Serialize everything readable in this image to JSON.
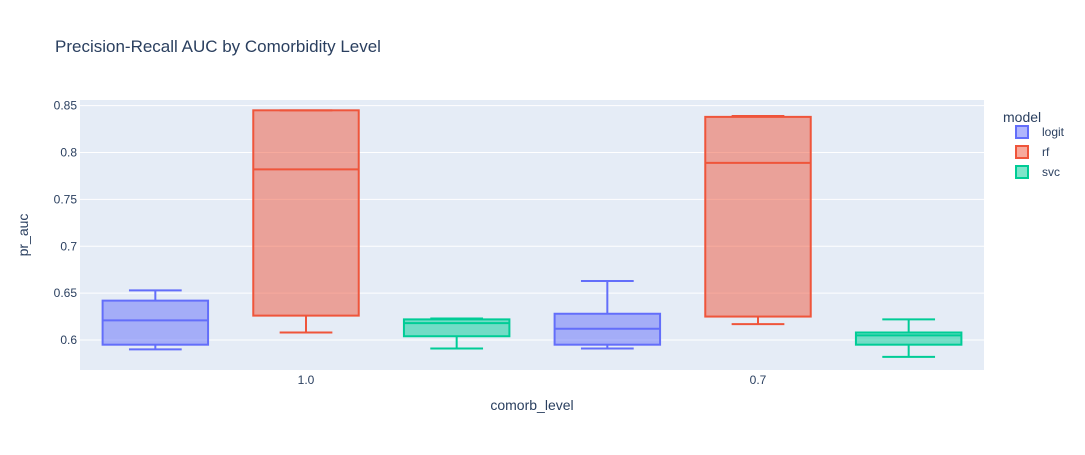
{
  "chart_data": {
    "type": "box",
    "title": "Precision-Recall AUC by Comorbidity Level",
    "xlabel": "comorb_level",
    "ylabel": "pr_auc",
    "categories": [
      "1.0",
      "0.7"
    ],
    "ylim": [
      0.568,
      0.856
    ],
    "yticks": [
      0.6,
      0.65,
      0.7,
      0.75,
      0.8,
      0.85
    ],
    "ytick_labels": [
      "0.6",
      "0.65",
      "0.7",
      "0.75",
      "0.8",
      "0.85"
    ],
    "grid": true,
    "legend": {
      "title": "model",
      "placement": "top-right"
    },
    "series": [
      {
        "name": "logit",
        "color": "#636efa",
        "fill": "rgba(99,110,250,0.5)",
        "boxes": [
          {
            "category": "1.0",
            "min": 0.59,
            "q1": 0.595,
            "median": 0.621,
            "q3": 0.642,
            "max": 0.653
          },
          {
            "category": "0.7",
            "min": 0.591,
            "q1": 0.595,
            "median": 0.612,
            "q3": 0.628,
            "max": 0.663
          }
        ]
      },
      {
        "name": "rf",
        "color": "#ef553b",
        "fill": "rgba(239,85,59,0.5)",
        "boxes": [
          {
            "category": "1.0",
            "min": 0.608,
            "q1": 0.626,
            "median": 0.782,
            "q3": 0.845,
            "max": 0.845
          },
          {
            "category": "0.7",
            "min": 0.617,
            "q1": 0.625,
            "median": 0.789,
            "q3": 0.838,
            "max": 0.839
          }
        ]
      },
      {
        "name": "svc",
        "color": "#00cc96",
        "fill": "rgba(0,204,150,0.5)",
        "boxes": [
          {
            "category": "1.0",
            "min": 0.591,
            "q1": 0.604,
            "median": 0.618,
            "q3": 0.622,
            "max": 0.623
          },
          {
            "category": "0.7",
            "min": 0.582,
            "q1": 0.595,
            "median": 0.605,
            "q3": 0.608,
            "max": 0.622
          }
        ]
      }
    ]
  }
}
